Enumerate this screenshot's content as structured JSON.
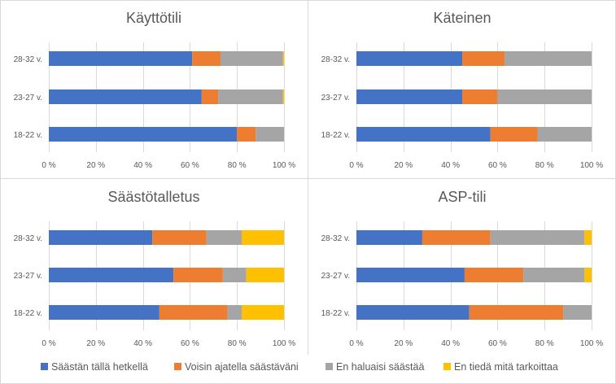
{
  "legend": [
    {
      "label": "Säästän tällä hetkellä",
      "color": "#4472C4"
    },
    {
      "label": "Voisin ajatella säästäväni",
      "color": "#ED7D31"
    },
    {
      "label": "En haluaisi säästää",
      "color": "#A5A5A5"
    },
    {
      "label": "En tiedä mitä tarkoittaa",
      "color": "#FFC000"
    }
  ],
  "chart_data": [
    {
      "type": "bar",
      "stacked": true,
      "orientation": "horizontal",
      "title": "Käyttötili",
      "categories": [
        "28-32 v.",
        "23-27 v.",
        "18-22 v."
      ],
      "x_ticks": [
        "0 %",
        "20 %",
        "40 %",
        "60 %",
        "80 %",
        "100 %"
      ],
      "xlim": [
        0,
        100
      ],
      "series": [
        {
          "name": "Säästän tällä hetkellä",
          "values": [
            61,
            65,
            80
          ]
        },
        {
          "name": "Voisin ajatella säästäväni",
          "values": [
            12,
            7,
            8
          ]
        },
        {
          "name": "En haluaisi säästää",
          "values": [
            26.5,
            27.5,
            12
          ]
        },
        {
          "name": "En tiedä mitä tarkoittaa",
          "values": [
            0.5,
            0.5,
            0
          ]
        }
      ]
    },
    {
      "type": "bar",
      "stacked": true,
      "orientation": "horizontal",
      "title": "Käteinen",
      "categories": [
        "28-32 v.",
        "23-27 v.",
        "18-22 v."
      ],
      "x_ticks": [
        "0 %",
        "20 %",
        "40 %",
        "60 %",
        "80 %",
        "100 %"
      ],
      "xlim": [
        0,
        100
      ],
      "series": [
        {
          "name": "Säästän tällä hetkellä",
          "values": [
            45,
            45,
            57
          ]
        },
        {
          "name": "Voisin ajatella säästäväni",
          "values": [
            18,
            15,
            20
          ]
        },
        {
          "name": "En haluaisi säästää",
          "values": [
            37,
            40,
            23
          ]
        },
        {
          "name": "En tiedä mitä tarkoittaa",
          "values": [
            0,
            0,
            0
          ]
        }
      ]
    },
    {
      "type": "bar",
      "stacked": true,
      "orientation": "horizontal",
      "title": "Säästötalletus",
      "categories": [
        "28-32 v.",
        "23-27 v.",
        "18-22 v."
      ],
      "x_ticks": [
        "0 %",
        "20 %",
        "40 %",
        "60 %",
        "80 %",
        "100 %"
      ],
      "xlim": [
        0,
        100
      ],
      "series": [
        {
          "name": "Säästän tällä hetkellä",
          "values": [
            44,
            53,
            47
          ]
        },
        {
          "name": "Voisin ajatella säästäväni",
          "values": [
            23,
            21,
            29
          ]
        },
        {
          "name": "En haluaisi säästää",
          "values": [
            15,
            10,
            6
          ]
        },
        {
          "name": "En tiedä mitä tarkoittaa",
          "values": [
            18,
            16,
            18
          ]
        }
      ]
    },
    {
      "type": "bar",
      "stacked": true,
      "orientation": "horizontal",
      "title": "ASP-tili",
      "categories": [
        "28-32 v.",
        "23-27 v.",
        "18-22 v."
      ],
      "x_ticks": [
        "0 %",
        "20 %",
        "40 %",
        "60 %",
        "80 %",
        "100 %"
      ],
      "xlim": [
        0,
        100
      ],
      "series": [
        {
          "name": "Säästän tällä hetkellä",
          "values": [
            28,
            46,
            48
          ]
        },
        {
          "name": "Voisin ajatella säästäväni",
          "values": [
            29,
            25,
            40
          ]
        },
        {
          "name": "En haluaisi säästää",
          "values": [
            40,
            26,
            12
          ]
        },
        {
          "name": "En tiedä mitä tarkoittaa",
          "values": [
            3,
            3,
            0
          ]
        }
      ]
    }
  ]
}
